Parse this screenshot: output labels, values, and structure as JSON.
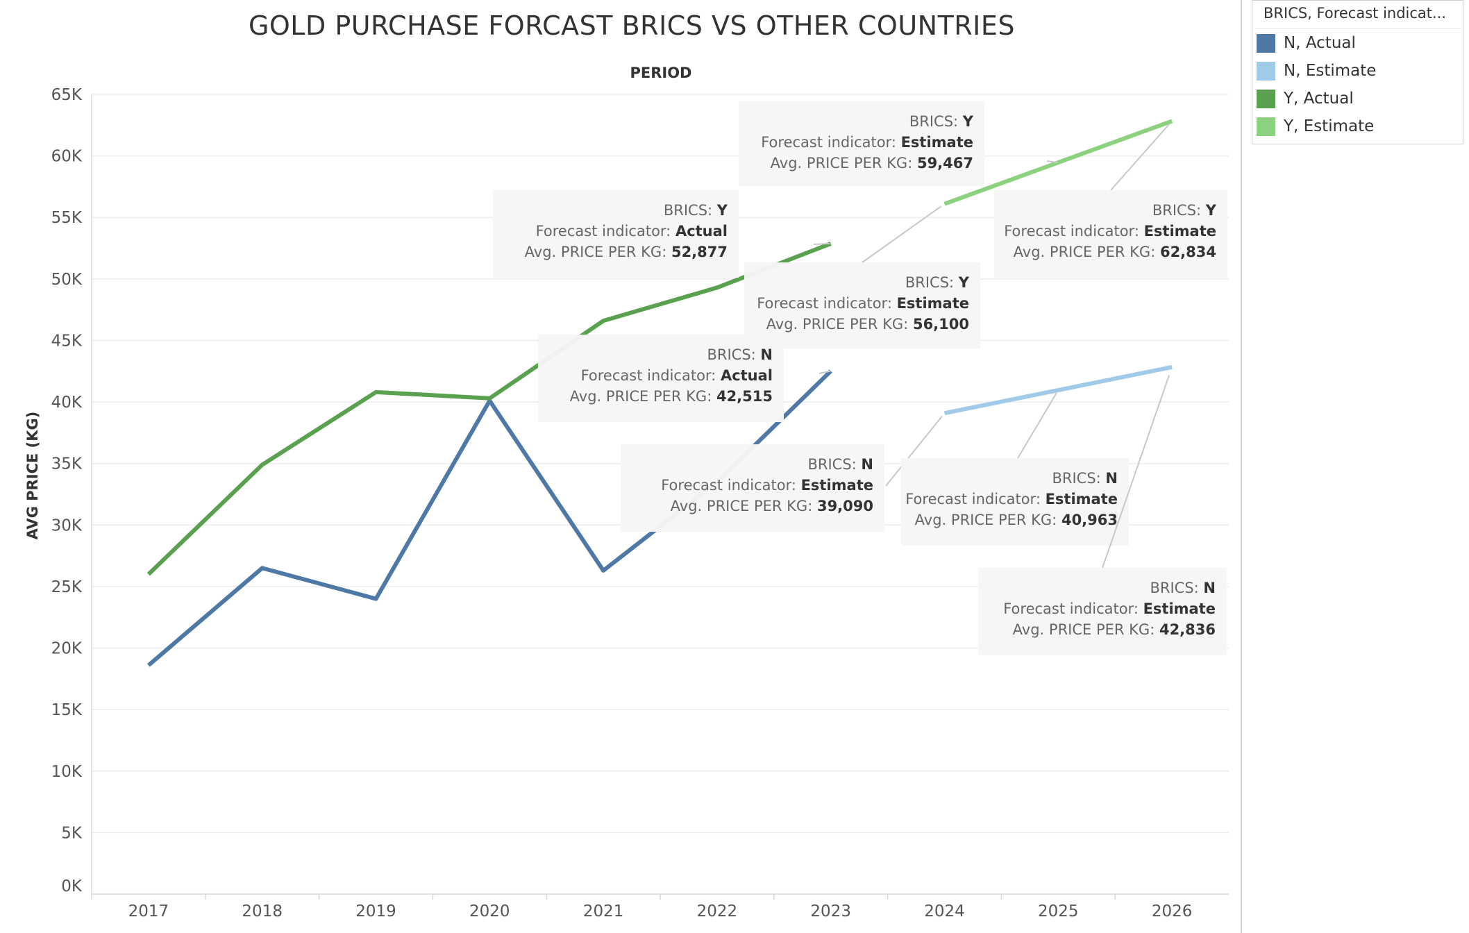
{
  "chart_data": {
    "type": "line",
    "title": "GOLD PURCHASE FORCAST BRICS VS OTHER COUNTRIES",
    "xlabel": "PERIOD",
    "ylabel": "AVG PRICE (KG)",
    "categories": [
      "2017",
      "2018",
      "2019",
      "2020",
      "2021",
      "2022",
      "2023",
      "2024",
      "2025",
      "2026"
    ],
    "ylim": [
      0,
      65000
    ],
    "yticks": [
      0,
      5000,
      10000,
      15000,
      20000,
      25000,
      30000,
      35000,
      40000,
      45000,
      50000,
      55000,
      60000,
      65000
    ],
    "ytick_labels": [
      "0K",
      "5K",
      "10K",
      "15K",
      "20K",
      "25K",
      "30K",
      "35K",
      "40K",
      "45K",
      "50K",
      "55K",
      "60K",
      "65K"
    ],
    "grid": true,
    "legend_position": "top-right",
    "series": [
      {
        "name": "N, Actual",
        "color": "#4e79a7",
        "values": [
          18600,
          26500,
          24000,
          40100,
          26300,
          33500,
          42515,
          null,
          null,
          null
        ]
      },
      {
        "name": "N, Estimate",
        "color": "#a0cbe8",
        "values": [
          null,
          null,
          null,
          null,
          null,
          null,
          null,
          39090,
          40963,
          42836
        ]
      },
      {
        "name": "Y, Actual",
        "color": "#59a14f",
        "values": [
          26000,
          34900,
          40800,
          40300,
          46600,
          49300,
          52877,
          null,
          null,
          null
        ]
      },
      {
        "name": "Y, Estimate",
        "color": "#8cd17d",
        "values": [
          null,
          null,
          null,
          null,
          null,
          null,
          null,
          56100,
          59467,
          62834
        ]
      }
    ],
    "annotations": [
      {
        "brics": "Y",
        "indicator": "Estimate",
        "value": "59,467",
        "series": 3,
        "point": 8
      },
      {
        "brics": "Y",
        "indicator": "Actual",
        "value": "52,877",
        "series": 2,
        "point": 6
      },
      {
        "brics": "Y",
        "indicator": "Estimate",
        "value": "62,834",
        "series": 3,
        "point": 9
      },
      {
        "brics": "Y",
        "indicator": "Estimate",
        "value": "56,100",
        "series": 3,
        "point": 7
      },
      {
        "brics": "N",
        "indicator": "Actual",
        "value": "42,515",
        "series": 0,
        "point": 6
      },
      {
        "brics": "N",
        "indicator": "Estimate",
        "value": "39,090",
        "series": 1,
        "point": 7
      },
      {
        "brics": "N",
        "indicator": "Estimate",
        "value": "40,963",
        "series": 1,
        "point": 8
      },
      {
        "brics": "N",
        "indicator": "Estimate",
        "value": "42,836",
        "series": 1,
        "point": 9
      }
    ],
    "annotation_labels": {
      "brics": "BRICS:",
      "indicator": "Forecast indicator:",
      "value": "Avg. PRICE PER KG:"
    }
  },
  "legend": {
    "title": "BRICS, Forecast indicat...",
    "items": [
      {
        "label": "N, Actual",
        "color": "#4e79a7"
      },
      {
        "label": "N, Estimate",
        "color": "#a0cbe8"
      },
      {
        "label": "Y, Actual",
        "color": "#59a14f"
      },
      {
        "label": "Y, Estimate",
        "color": "#8cd17d"
      }
    ]
  }
}
